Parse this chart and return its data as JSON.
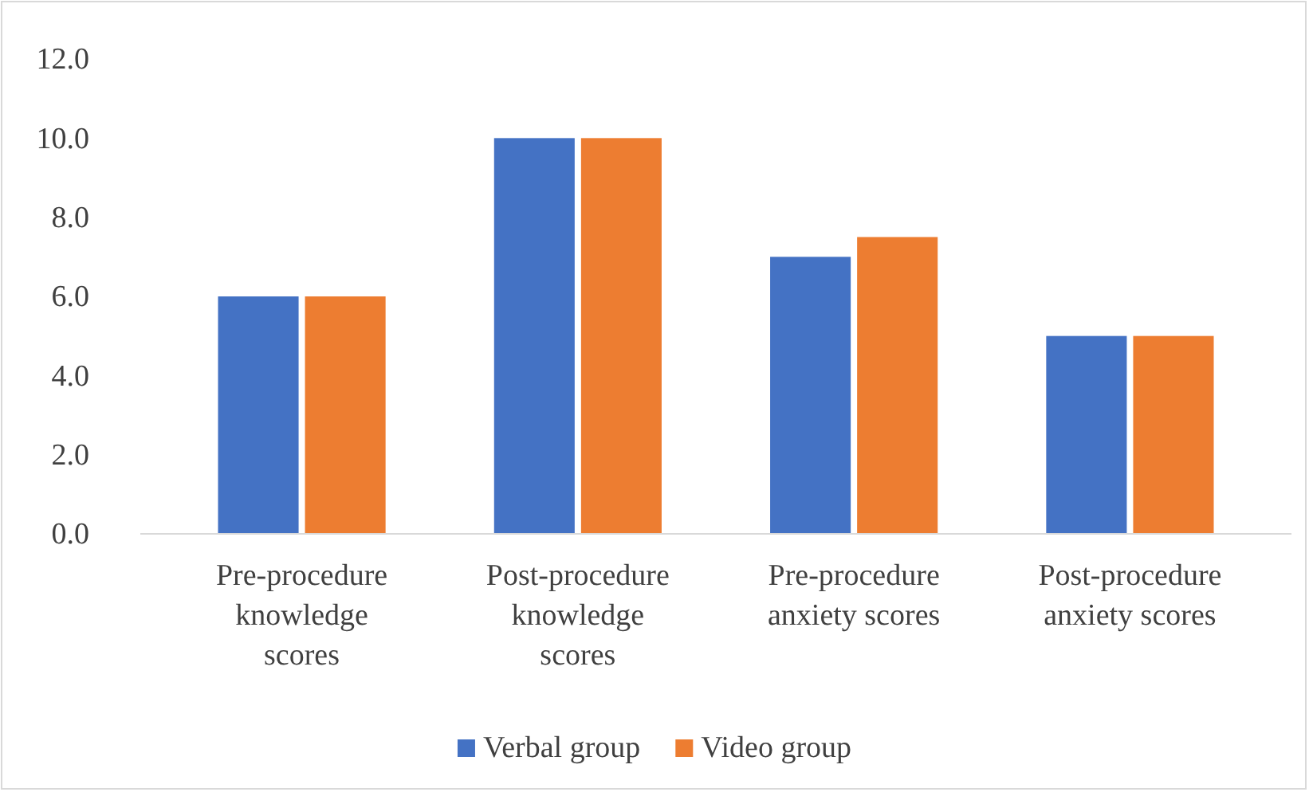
{
  "chart_data": {
    "type": "bar",
    "categories": [
      "Pre-procedure knowledge scores",
      "Post-procedure knowledge scores",
      "Pre-procedure anxiety scores",
      "Post-procedure anxiety scores"
    ],
    "series": [
      {
        "name": "Verbal group",
        "color": "#4472c4",
        "values": [
          6,
          10,
          7,
          5
        ]
      },
      {
        "name": "Video group",
        "color": "#ed7d31",
        "values": [
          6,
          10,
          7.5,
          5
        ]
      }
    ],
    "ylim": [
      0,
      12
    ],
    "yticks": [
      {
        "value": 0,
        "label": "0.0"
      },
      {
        "value": 2,
        "label": "2.0"
      },
      {
        "value": 4,
        "label": "4.0"
      },
      {
        "value": 6,
        "label": "6.0"
      },
      {
        "value": 8,
        "label": "8.0"
      },
      {
        "value": 10,
        "label": "10.0"
      },
      {
        "value": 12,
        "label": "12.0"
      }
    ],
    "grid": false,
    "legend": "bottom"
  }
}
